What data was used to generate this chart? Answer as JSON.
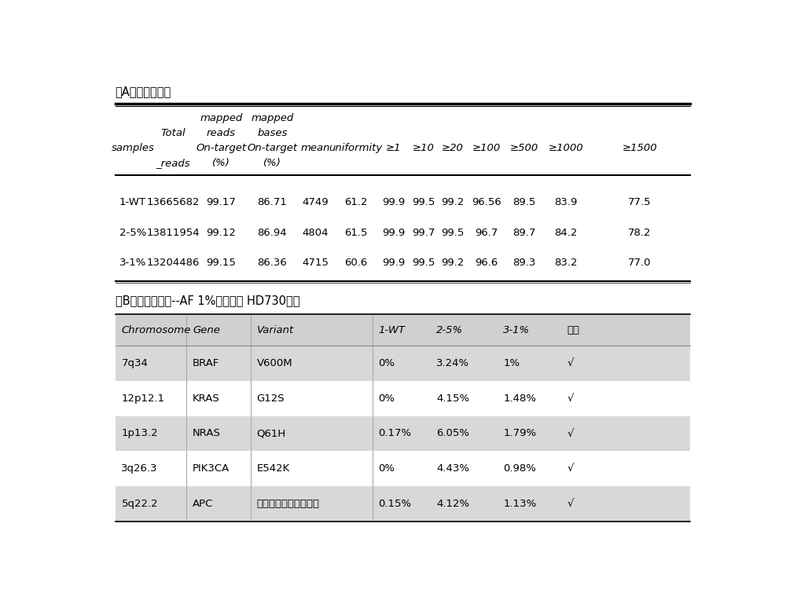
{
  "title_A": "（A）覆盖率统计",
  "title_B": "（B）检测灵敏度--AF 1%（标准品 HD730）：",
  "table_A": {
    "rows": [
      [
        "1-WT",
        "13665682",
        "99.17",
        "86.71",
        "4749",
        "61.2",
        "99.9",
        "99.5",
        "99.2",
        "96.56",
        "89.5",
        "83.9",
        "77.5"
      ],
      [
        "2-5%",
        "13811954",
        "99.12",
        "86.94",
        "4804",
        "61.5",
        "99.9",
        "99.7",
        "99.5",
        "96.7",
        "89.7",
        "84.2",
        "78.2"
      ],
      [
        "3-1%",
        "13204486",
        "99.15",
        "86.36",
        "4715",
        "60.6",
        "99.9",
        "99.5",
        "99.2",
        "96.6",
        "89.3",
        "83.2",
        "77.0"
      ]
    ]
  },
  "table_B": {
    "headers": [
      "Chromosome",
      "Gene",
      "Variant",
      "1-WT",
      "2-5%",
      "3-1%",
      "结果"
    ],
    "rows": [
      [
        "7q34",
        "BRAF",
        "V600M",
        "0%",
        "3.24%",
        "1%",
        "√"
      ],
      [
        "12p12.1",
        "KRAS",
        "G12S",
        "0%",
        "4.15%",
        "1.48%",
        "√"
      ],
      [
        "1p13.2",
        "NRAS",
        "Q61H",
        "0.17%",
        "6.05%",
        "1.79%",
        "√"
      ],
      [
        "3q26.3",
        "PIK3CA",
        "E542K",
        "0%",
        "4.43%",
        "0.98%",
        "√"
      ],
      [
        "5q22.2",
        "APC",
        "标准品未提供相关信息",
        "0.15%",
        "4.12%",
        "1.13%",
        "√"
      ]
    ],
    "row_bg_colors": [
      "#d8d8d8",
      "#ffffff",
      "#d8d8d8",
      "#ffffff",
      "#d8d8d8"
    ],
    "header_bg": "#d0d0d0"
  },
  "bg_color": "#ffffff",
  "font_size": 9.5,
  "title_font_size": 10.5
}
